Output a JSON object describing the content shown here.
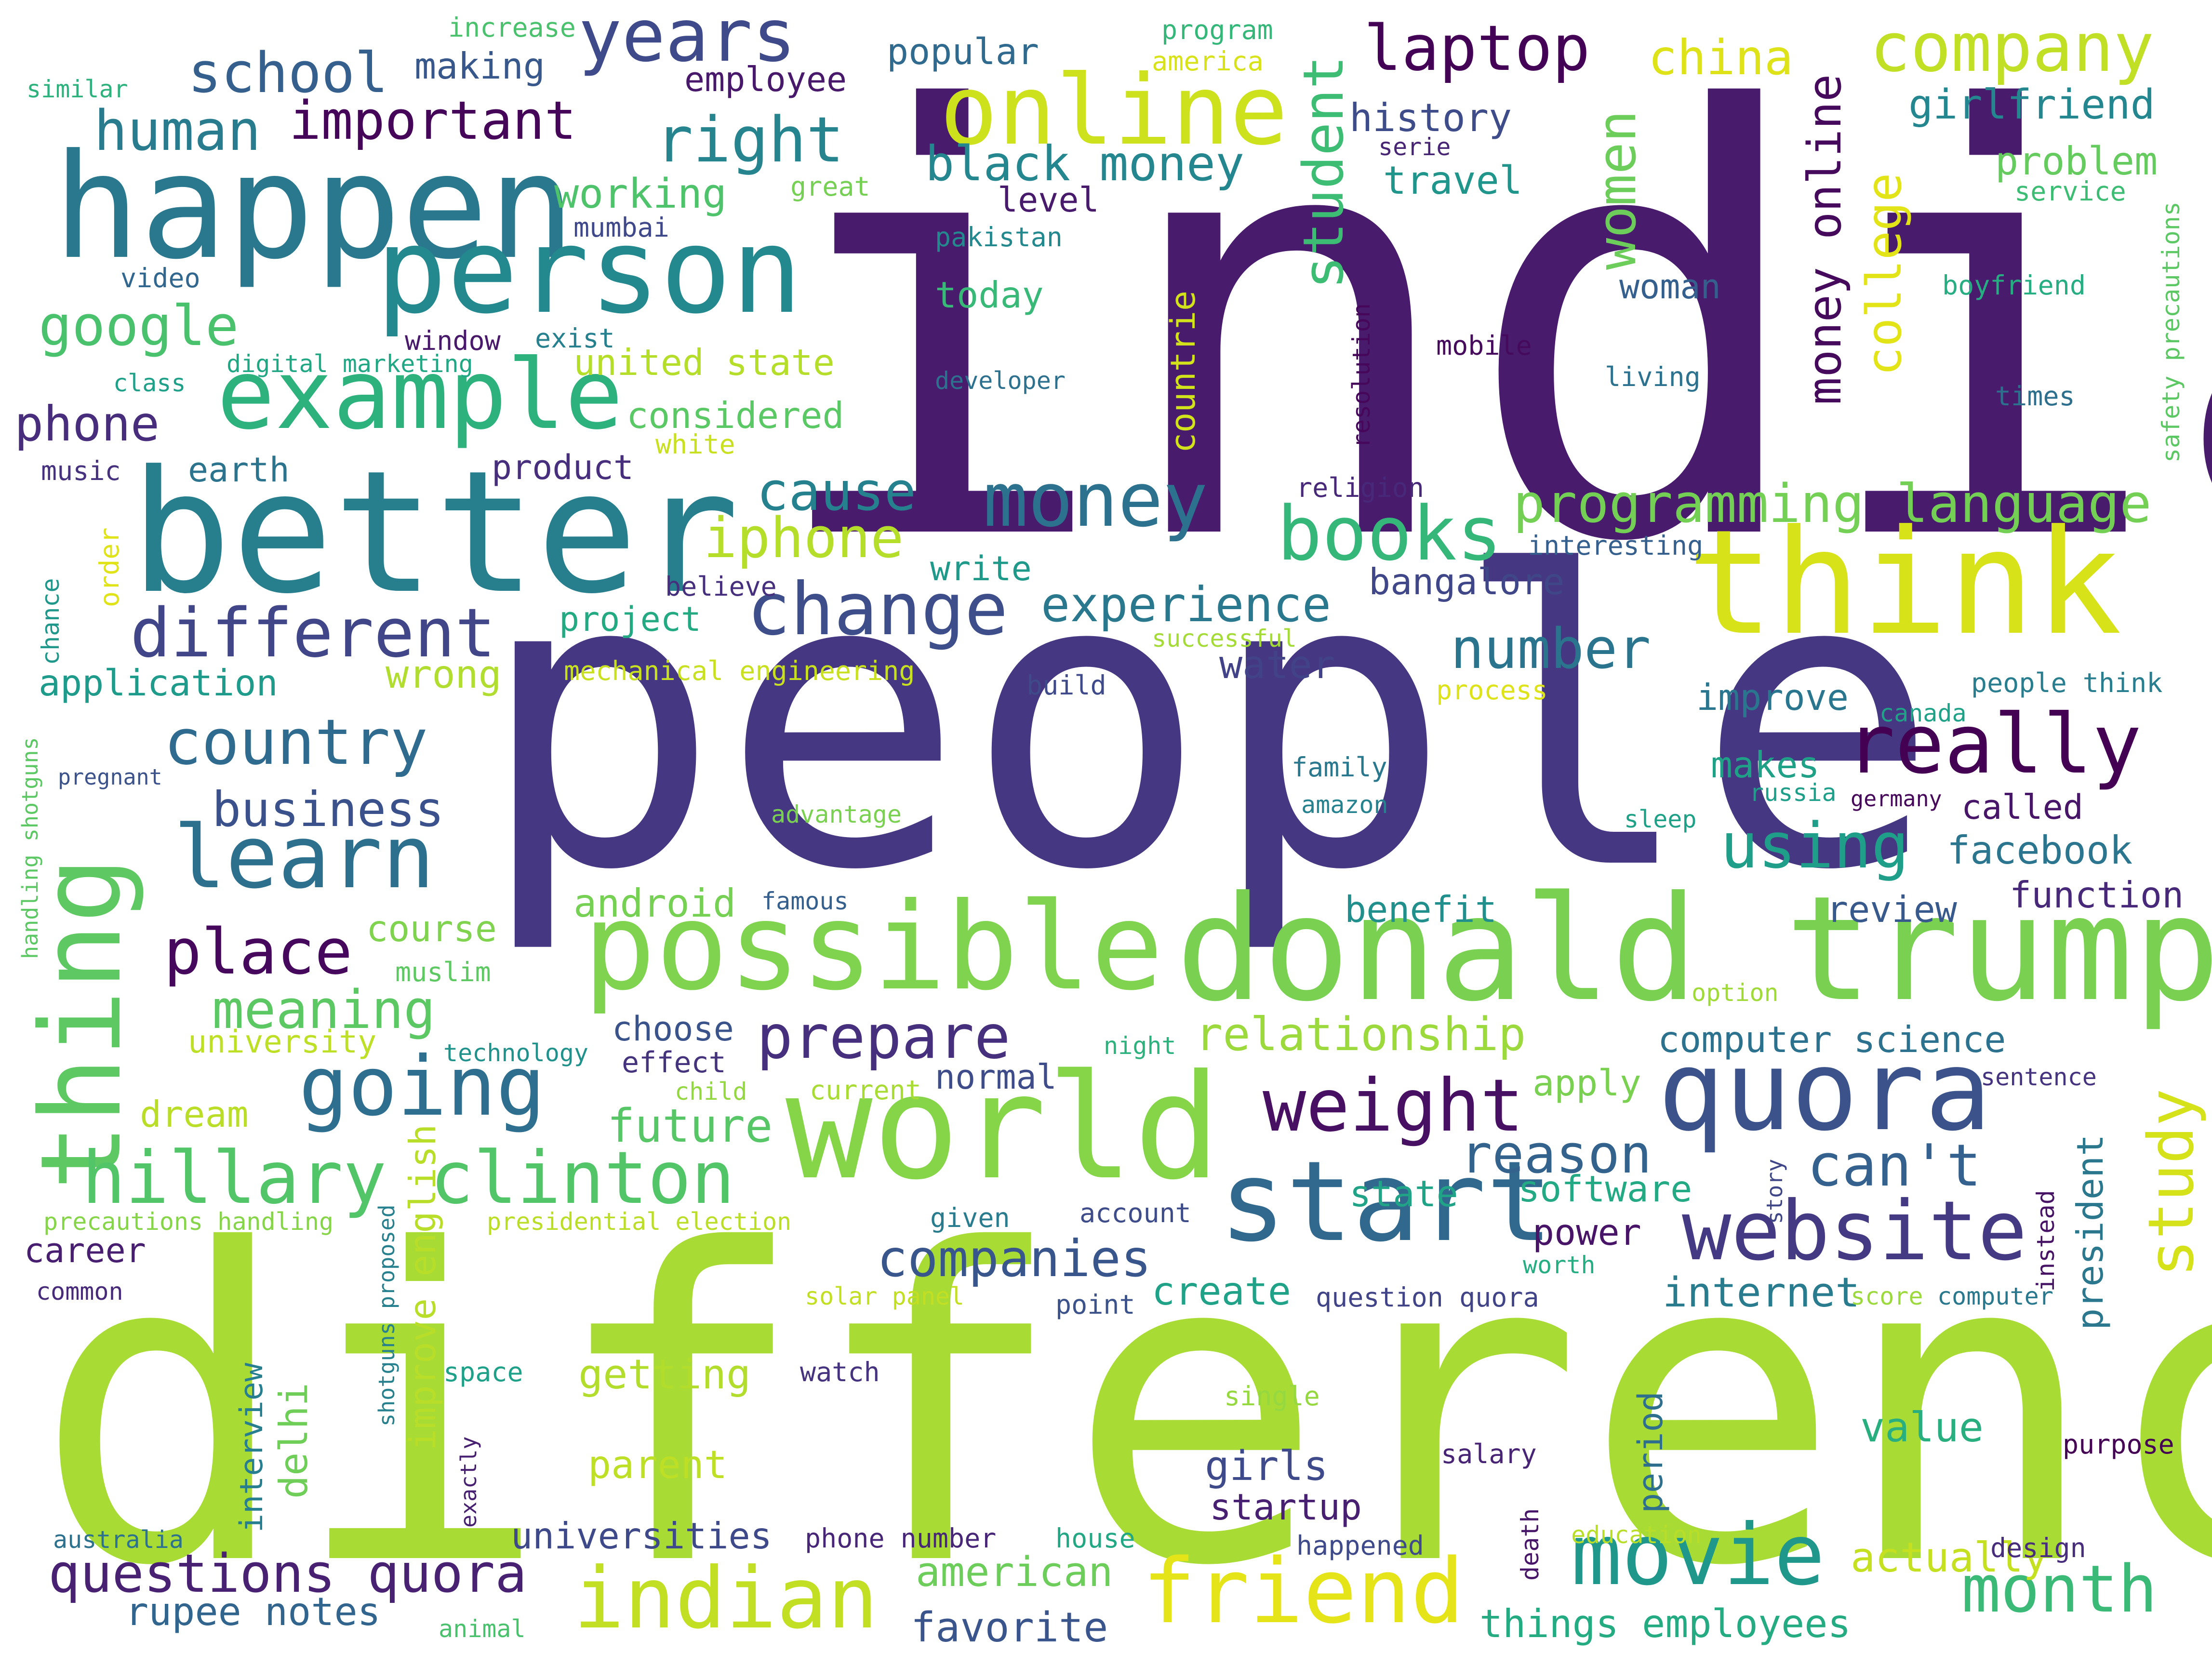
{
  "words": [
    {
      "text": "india",
      "color": "#481b6d"
    },
    {
      "text": "people",
      "color": "#453781"
    },
    {
      "text": "difference",
      "color": "#a8db34"
    },
    {
      "text": "better",
      "color": "#277f8e"
    },
    {
      "text": "think",
      "color": "#d8e219"
    },
    {
      "text": "donald trump",
      "color": "#7ad151"
    },
    {
      "text": "world",
      "color": "#86d549"
    },
    {
      "text": "possible",
      "color": "#7fd34e"
    },
    {
      "text": "happen",
      "color": "#2a788e"
    },
    {
      "text": "person",
      "color": "#23898e"
    },
    {
      "text": "example",
      "color": "#2db27d"
    },
    {
      "text": "thing",
      "color": "#5ec962"
    },
    {
      "text": "online",
      "color": "#cde11d"
    },
    {
      "text": "start",
      "color": "#31688e"
    },
    {
      "text": "quora",
      "color": "#3b528b"
    },
    {
      "text": "hillary clinton",
      "color": "#52c569"
    },
    {
      "text": "website",
      "color": "#443983"
    },
    {
      "text": "indian",
      "color": "#c2df23"
    },
    {
      "text": "friend",
      "color": "#e5e419"
    },
    {
      "text": "movie",
      "color": "#1f988b"
    },
    {
      "text": "years",
      "color": "#3e4a89"
    },
    {
      "text": "money",
      "color": "#2c728e"
    },
    {
      "text": "change",
      "color": "#3d4e8a"
    },
    {
      "text": "learn",
      "color": "#2d708e"
    },
    {
      "text": "going",
      "color": "#2e6e8e"
    },
    {
      "text": "different",
      "color": "#404688"
    },
    {
      "text": "really",
      "color": "#440154"
    },
    {
      "text": "books",
      "color": "#35b779"
    },
    {
      "text": "weight",
      "color": "#471063"
    },
    {
      "text": "month",
      "color": "#3aba76"
    },
    {
      "text": "questions quora",
      "color": "#482173"
    },
    {
      "text": "companies",
      "color": "#39568c"
    },
    {
      "text": "country",
      "color": "#2f6b8e"
    },
    {
      "text": "school",
      "color": "#355f8d"
    },
    {
      "text": "laptop",
      "color": "#440256"
    },
    {
      "text": "company",
      "color": "#c0df25"
    },
    {
      "text": "right",
      "color": "#25848e"
    },
    {
      "text": "human",
      "color": "#287c8e"
    },
    {
      "text": "important",
      "color": "#450559"
    },
    {
      "text": "google",
      "color": "#4ac16d"
    },
    {
      "text": "place",
      "color": "#46085c"
    },
    {
      "text": "meaning",
      "color": "#5cc863"
    },
    {
      "text": "prepare",
      "color": "#46307e"
    },
    {
      "text": "programming language",
      "color": "#74d055"
    },
    {
      "text": "number",
      "color": "#2b748e"
    },
    {
      "text": "experience",
      "color": "#2a788e"
    },
    {
      "text": "iphone",
      "color": "#b5de2b"
    },
    {
      "text": "cause",
      "color": "#26818e"
    },
    {
      "text": "reason",
      "color": "#33638d"
    },
    {
      "text": "can't",
      "color": "#34618d"
    },
    {
      "text": "study",
      "color": "#d5e21a"
    },
    {
      "text": "black money",
      "color": "#24868e"
    },
    {
      "text": "business",
      "color": "#3b518b"
    },
    {
      "text": "phone",
      "color": "#472d7b"
    },
    {
      "text": "using",
      "color": "#1f9e89"
    },
    {
      "text": "student",
      "color": "#3dbc74"
    },
    {
      "text": "women",
      "color": "#6ccd5a"
    },
    {
      "text": "college",
      "color": "#e2e418"
    },
    {
      "text": "money online",
      "color": "#460a5d"
    },
    {
      "text": "china",
      "color": "#dde318"
    },
    {
      "text": "girlfriend",
      "color": "#24868e"
    },
    {
      "text": "problem",
      "color": "#65cb5e"
    },
    {
      "text": "history",
      "color": "#3e4c8a"
    },
    {
      "text": "travel",
      "color": "#1f958b"
    },
    {
      "text": "relationship",
      "color": "#9bd93c"
    },
    {
      "text": "computer science",
      "color": "#2c718e"
    },
    {
      "text": "rupee notes",
      "color": "#32658e"
    },
    {
      "text": "future",
      "color": "#56c667"
    },
    {
      "text": "internet",
      "color": "#297b8e"
    },
    {
      "text": "create",
      "color": "#1fa287"
    },
    {
      "text": "american",
      "color": "#6ccd5a"
    },
    {
      "text": "favorite",
      "color": "#3a548c"
    },
    {
      "text": "things employees",
      "color": "#25ab82"
    },
    {
      "text": "actually",
      "color": "#c5e021"
    },
    {
      "text": "universities",
      "color": "#3e4989"
    },
    {
      "text": "facebook",
      "color": "#2b758e"
    },
    {
      "text": "function",
      "color": "#482878"
    },
    {
      "text": "review",
      "color": "#38598c"
    },
    {
      "text": "benefit",
      "color": "#21908d"
    },
    {
      "text": "android",
      "color": "#75d054"
    },
    {
      "text": "course",
      "color": "#7fd34e"
    },
    {
      "text": "working",
      "color": "#4ec36b"
    },
    {
      "text": "application",
      "color": "#1e9b8a"
    },
    {
      "text": "bangalore",
      "color": "#3f4788"
    },
    {
      "text": "improve",
      "color": "#2a768e"
    },
    {
      "text": "makes",
      "color": "#1fa188"
    },
    {
      "text": "called",
      "color": "#481668"
    },
    {
      "text": "apply",
      "color": "#7ad151"
    },
    {
      "text": "getting",
      "color": "#b2dd2d"
    },
    {
      "text": "parent",
      "color": "#bddf26"
    },
    {
      "text": "delhi",
      "color": "#6ece58"
    },
    {
      "text": "interview",
      "color": "#277e8e"
    },
    {
      "text": "improve english",
      "color": "#b8de29"
    },
    {
      "text": "career",
      "color": "#481f70"
    },
    {
      "text": "startup",
      "color": "#482071"
    },
    {
      "text": "girls",
      "color": "#3e4a89"
    },
    {
      "text": "value",
      "color": "#29af7f"
    },
    {
      "text": "power",
      "color": "#481467"
    },
    {
      "text": "state",
      "color": "#20a386"
    },
    {
      "text": "software",
      "color": "#23a983"
    },
    {
      "text": "president",
      "color": "#2a778e"
    },
    {
      "text": "water",
      "color": "#414287"
    },
    {
      "text": "write",
      "color": "#1f9a8a"
    },
    {
      "text": "project",
      "color": "#24aa83"
    },
    {
      "text": "wrong",
      "color": "#b0dd2f"
    },
    {
      "text": "choose",
      "color": "#3a538b"
    },
    {
      "text": "effect",
      "color": "#45337d"
    },
    {
      "text": "dream",
      "color": "#bade28"
    },
    {
      "text": "university",
      "color": "#bddf26"
    },
    {
      "text": "normal",
      "color": "#3e4c8a"
    },
    {
      "text": "period",
      "color": "#2e6f8e"
    },
    {
      "text": "countrie",
      "color": "#d2e21b"
    },
    {
      "text": "today",
      "color": "#38b977"
    },
    {
      "text": "level",
      "color": "#481a6c"
    },
    {
      "text": "popular",
      "color": "#306a8e"
    },
    {
      "text": "employee",
      "color": "#48196b"
    },
    {
      "text": "making",
      "color": "#38588c"
    },
    {
      "text": "united state",
      "color": "#b5de2b"
    },
    {
      "text": "considered",
      "color": "#5ac864"
    },
    {
      "text": "product",
      "color": "#472f7d"
    },
    {
      "text": "earth",
      "color": "#2c738e"
    },
    {
      "text": "woman",
      "color": "#355f8d"
    },
    {
      "text": "increase",
      "color": "#4ac16d"
    },
    {
      "text": "program",
      "color": "#35b779"
    },
    {
      "text": "america",
      "color": "#d8e219"
    },
    {
      "text": "similar",
      "color": "#2db27d"
    },
    {
      "text": "great",
      "color": "#75d054"
    },
    {
      "text": "mumbai",
      "color": "#3f4889"
    },
    {
      "text": "pakistan",
      "color": "#23898e"
    },
    {
      "text": "video",
      "color": "#31678e"
    },
    {
      "text": "window",
      "color": "#48186a"
    },
    {
      "text": "exist",
      "color": "#27808e"
    },
    {
      "text": "digital marketing",
      "color": "#22a785"
    },
    {
      "text": "class",
      "color": "#1fa088"
    },
    {
      "text": "developer",
      "color": "#2d718e"
    },
    {
      "text": "music",
      "color": "#46327e"
    },
    {
      "text": "white",
      "color": "#c8e020"
    },
    {
      "text": "resolution",
      "color": "#46075a"
    },
    {
      "text": "mobile",
      "color": "#460a5d"
    },
    {
      "text": "living",
      "color": "#2c728e"
    },
    {
      "text": "times",
      "color": "#2d708e"
    },
    {
      "text": "serie",
      "color": "#482475"
    },
    {
      "text": "service",
      "color": "#3dbc74"
    },
    {
      "text": "boyfriend",
      "color": "#26ad81"
    },
    {
      "text": "safety precautions",
      "color": "#5cc863"
    },
    {
      "text": "religion",
      "color": "#482878"
    },
    {
      "text": "interesting",
      "color": "#355f8d"
    },
    {
      "text": "order",
      "color": "#dfe318"
    },
    {
      "text": "believe",
      "color": "#46307e"
    },
    {
      "text": "chance",
      "color": "#1f988b"
    },
    {
      "text": "mechanical engineering",
      "color": "#c8e020"
    },
    {
      "text": "successful",
      "color": "#a5db36"
    },
    {
      "text": "build",
      "color": "#3e4a89"
    },
    {
      "text": "process",
      "color": "#dde318"
    },
    {
      "text": "people think",
      "color": "#287d8e"
    },
    {
      "text": "canada",
      "color": "#1fa287"
    },
    {
      "text": "pregnant",
      "color": "#3b528b"
    },
    {
      "text": "handling shotguns",
      "color": "#5cc863"
    },
    {
      "text": "family",
      "color": "#2a788e"
    },
    {
      "text": "amazon",
      "color": "#26828e"
    },
    {
      "text": "russia",
      "color": "#1f9e89"
    },
    {
      "text": "germany",
      "color": "#46075a"
    },
    {
      "text": "sleep",
      "color": "#1fa188"
    },
    {
      "text": "advantage",
      "color": "#7ad151"
    },
    {
      "text": "famous",
      "color": "#355f8d"
    },
    {
      "text": "muslim",
      "color": "#5ec962"
    },
    {
      "text": "option",
      "color": "#a0da39"
    },
    {
      "text": "technology",
      "color": "#21918c"
    },
    {
      "text": "night",
      "color": "#2db27d"
    },
    {
      "text": "child",
      "color": "#93d741"
    },
    {
      "text": "current",
      "color": "#a8db34"
    },
    {
      "text": "sentence",
      "color": "#46337f"
    },
    {
      "text": "precautions handling",
      "color": "#86d549"
    },
    {
      "text": "presidential election",
      "color": "#bade28"
    },
    {
      "text": "given",
      "color": "#287c8e"
    },
    {
      "text": "account",
      "color": "#3e4c8a"
    },
    {
      "text": "story",
      "color": "#3f4788"
    },
    {
      "text": "instead",
      "color": "#471365"
    },
    {
      "text": "worth",
      "color": "#26ad81"
    },
    {
      "text": "common",
      "color": "#472a7a"
    },
    {
      "text": "solar panel",
      "color": "#c2df23"
    },
    {
      "text": "point",
      "color": "#3b528b"
    },
    {
      "text": "question quora",
      "color": "#414487"
    },
    {
      "text": "score",
      "color": "#9bd93c"
    },
    {
      "text": "computer",
      "color": "#2a788e"
    },
    {
      "text": "shotguns proposed",
      "color": "#27808e"
    },
    {
      "text": "exactly",
      "color": "#482071"
    },
    {
      "text": "space",
      "color": "#1fa088"
    },
    {
      "text": "watch",
      "color": "#46337f"
    },
    {
      "text": "single",
      "color": "#95d840"
    },
    {
      "text": "salary",
      "color": "#482475"
    },
    {
      "text": "purpose",
      "color": "#440154"
    },
    {
      "text": "australia",
      "color": "#2c728e"
    },
    {
      "text": "phone number",
      "color": "#482677"
    },
    {
      "text": "house",
      "color": "#22a785"
    },
    {
      "text": "happened",
      "color": "#3e4a89"
    },
    {
      "text": "death",
      "color": "#481668"
    },
    {
      "text": "education",
      "color": "#b8de29"
    },
    {
      "text": "design",
      "color": "#472d7b"
    },
    {
      "text": "animal",
      "color": "#4ac16d"
    }
  ]
}
